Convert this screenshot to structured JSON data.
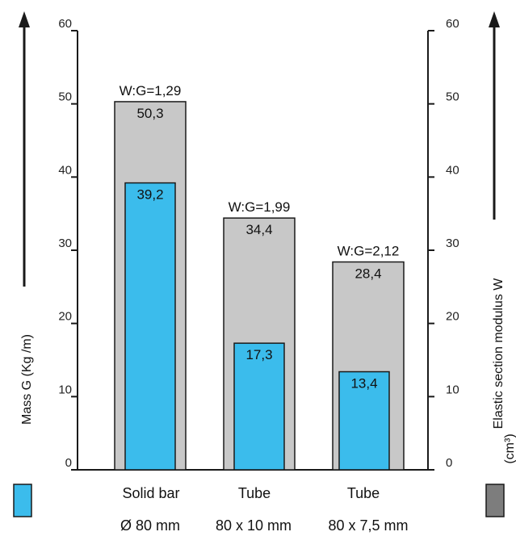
{
  "chart_data": {
    "type": "bar",
    "categories": [
      "Solid bar",
      "Tube",
      "Tube"
    ],
    "category_sublabels": [
      "Ø 80 mm",
      "80 x 10 mm",
      "80 x 7,5 mm"
    ],
    "series": [
      {
        "name": "",
        "key": "W",
        "values": [
          50.3,
          34.4,
          28.4
        ],
        "labels": [
          "50,3",
          "34,4",
          "28,4"
        ],
        "color": "#c8c8c8"
      },
      {
        "name": "",
        "key": "G",
        "values": [
          39.2,
          17.3,
          13.4
        ],
        "labels": [
          "39,2",
          "17,3",
          "13,4"
        ],
        "color": "#3bbcec"
      }
    ],
    "ratio_labels": [
      "W:G=1,29",
      "W:G=1,99",
      "W:G=2,12"
    ],
    "ylabel_left": "Mass G (Kg /m)",
    "ylabel_right": "Elastic section modulus W",
    "ylabel_right_unit": "(cm³)",
    "ylim": [
      0,
      60
    ],
    "yticks": [
      0,
      10,
      20,
      30,
      40,
      50,
      60
    ],
    "grid": false,
    "colors": {
      "mass": "#3bbcec",
      "modulus": "#c8c8c8",
      "axis": "#1a1a1a"
    }
  }
}
